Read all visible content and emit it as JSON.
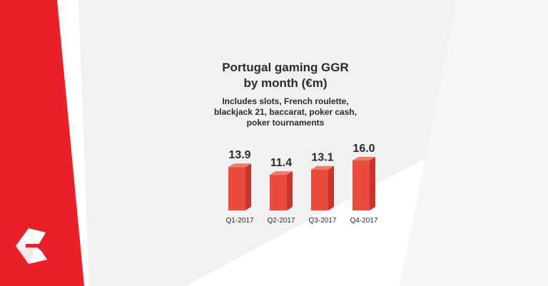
{
  "colors": {
    "brand_red": "#e8202a",
    "bar_front": "#e94b3c",
    "bar_side": "#c9352a",
    "bar_top": "#f07a6c",
    "background": "#ffffff",
    "background_shade": "#f1f1f1",
    "text": "#2b2b2b"
  },
  "branding": {
    "logo_icon": "logo-e-icon"
  },
  "chart_data": {
    "type": "bar",
    "title": "Portugal gaming GGR by month (€m)",
    "subtitle": "Includes slots, French roulette, blackjack 21, baccarat, poker cash, poker tournaments",
    "categories": [
      "Q1-2017",
      "Q2-2017",
      "Q3-2017",
      "Q4-2017"
    ],
    "values": [
      13.9,
      11.4,
      13.1,
      16.0
    ],
    "value_labels": [
      "13.9",
      "11.4",
      "13.1",
      "16.0"
    ],
    "xlabel": "",
    "ylabel": "",
    "ylim": [
      0,
      16.0
    ],
    "grid": false
  }
}
